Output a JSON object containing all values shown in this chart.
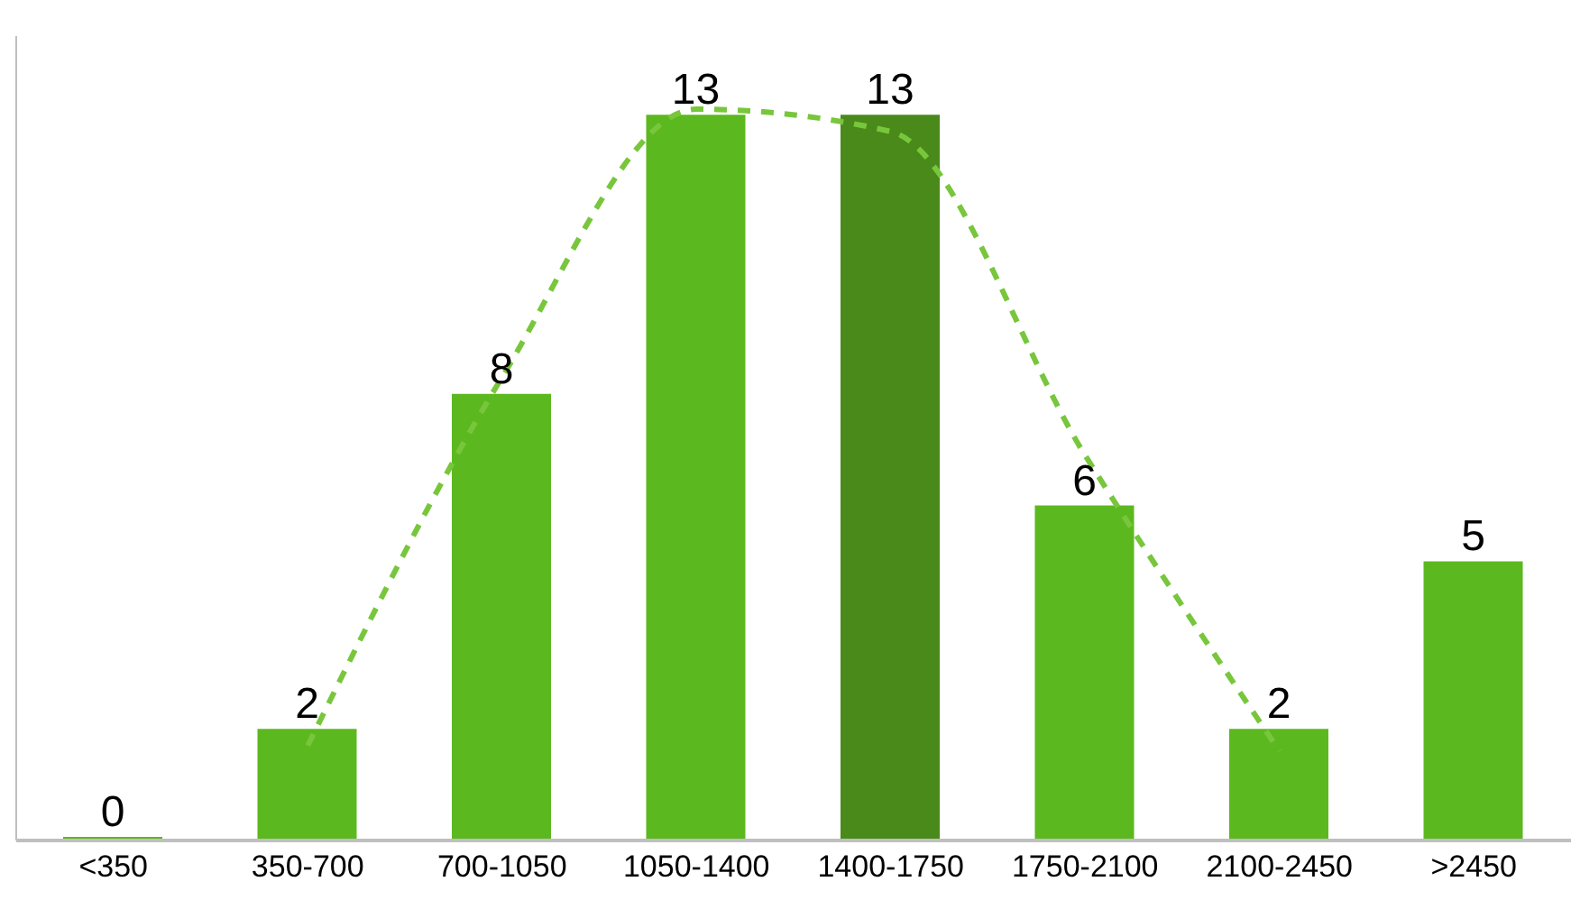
{
  "chart_data": {
    "type": "bar",
    "categories": [
      "<350",
      "350-700",
      "700-1050",
      "1050-1400",
      "1400-1750",
      "1750-2100",
      "2100-2450",
      ">2450"
    ],
    "series": [
      {
        "values": [
          0,
          2,
          8,
          13,
          13,
          6,
          2,
          5
        ],
        "colors": [
          "#5cb81f",
          "#5cb81f",
          "#5cb81f",
          "#5cb81f",
          "#4a8a1b",
          "#5cb81f",
          "#5cb81f",
          "#5cb81f"
        ],
        "data_labels": true
      },
      {
        "type": "line",
        "values": [
          null,
          1.7,
          8.3,
          13.1,
          12.7,
          6.9,
          1.6,
          null
        ],
        "color": "#78c63c",
        "line_style": "dashed",
        "marker": "none"
      }
    ],
    "grid": false,
    "legend": false
  }
}
